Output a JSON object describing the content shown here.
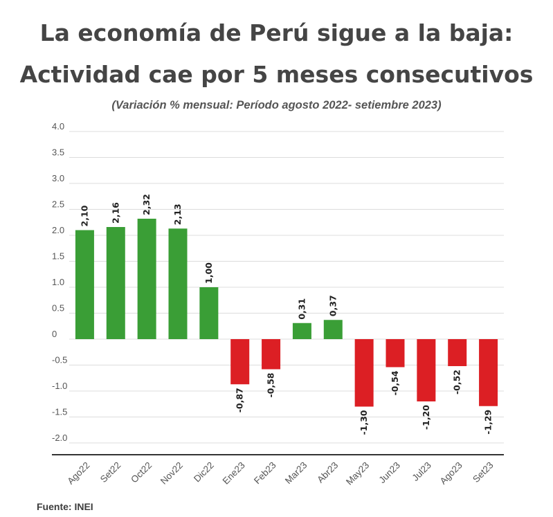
{
  "header": {
    "title_line1": "La economía de Perú sigue a la baja:",
    "title_line2": "Actividad cae por 5 meses consecutivos",
    "subtitle": "(Variación % mensual: Período agosto 2022- setiembre 2023)"
  },
  "footer": {
    "source": "Fuente: INEI"
  },
  "colors": {
    "positive": "#3a9e36",
    "negative": "#dc1f24",
    "grid": "#dcdcdc",
    "axis": "#333333",
    "text": "#333333"
  },
  "chart_data": {
    "type": "bar",
    "title": "La economía de Perú sigue a la baja: Actividad cae por 5 meses consecutivos",
    "subtitle": "(Variación % mensual: Período agosto 2022- setiembre 2023)",
    "categories": [
      "Ago22",
      "Set22",
      "Oct22",
      "Nov22",
      "Dic22",
      "Ene23",
      "Feb23",
      "Mar23",
      "Abr23",
      "May23",
      "Jun23",
      "Jul23",
      "Ago23",
      "Set23"
    ],
    "values": [
      2.1,
      2.16,
      2.32,
      2.13,
      1.0,
      -0.87,
      -0.58,
      0.31,
      0.37,
      -1.3,
      -0.54,
      -1.2,
      -0.52,
      -1.29
    ],
    "labels": [
      "2,10",
      "2,16",
      "2,32",
      "2,13",
      "1,00",
      "-0,87",
      "-0,58",
      "0,31",
      "0,37",
      "-1,30",
      "-0,54",
      "-1,20",
      "-0,52",
      "-1,29"
    ],
    "yticks": [
      4.0,
      3.5,
      3.0,
      2.5,
      2.0,
      1.5,
      1.0,
      0.5,
      0,
      -0.5,
      -1.0,
      -1.5,
      -2.0
    ],
    "ytick_labels": [
      "4.0",
      "3.5",
      "3.0",
      "2.5",
      "2.0",
      "1.5",
      "1.0",
      "0.5",
      "0",
      "-0.5",
      "-1.0",
      "-1.5",
      "-2.0"
    ],
    "ylim": [
      -2.0,
      4.0
    ],
    "xlabel": "",
    "ylabel": "",
    "grid": true,
    "legend": "none"
  }
}
